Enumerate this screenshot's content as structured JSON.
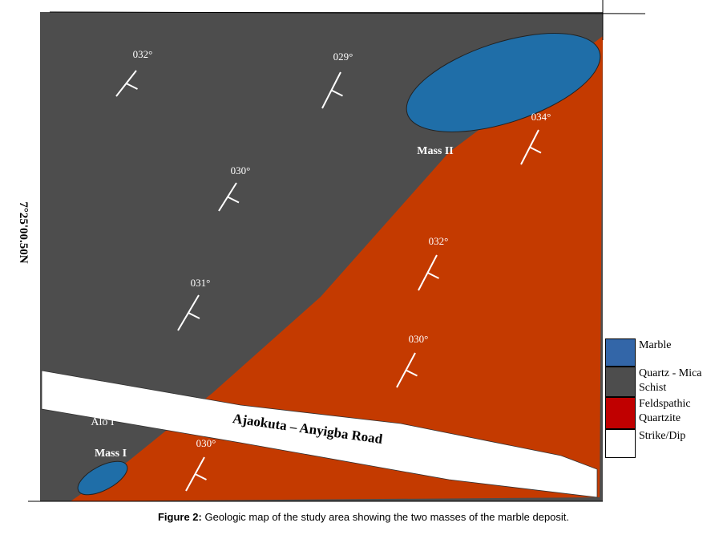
{
  "map": {
    "coordinate_label": "7°25'00.50N",
    "strike_dip": [
      {
        "label": "032°"
      },
      {
        "label": "029°"
      },
      {
        "label": "030°"
      },
      {
        "label": "031°"
      },
      {
        "label": "034°"
      },
      {
        "label": "032°"
      },
      {
        "label": "030°"
      },
      {
        "label": "030°"
      }
    ],
    "masses": [
      "Mass II",
      "Mass I"
    ],
    "locality": "Alo I",
    "road": "Ajaokuta – Anyigba Road"
  },
  "legend": [
    {
      "label": "Marble",
      "color": "#3366a8"
    },
    {
      "label": "Quartz - Mica Schist",
      "color": "#4d4d4d"
    },
    {
      "label": "Feldspathic Quartzite",
      "color": "#c00000"
    },
    {
      "label": "Strike/Dip",
      "color": "#ffffff"
    }
  ],
  "caption": {
    "label": "Figure 2:",
    "text": "Geologic map of the study area showing the two masses of the marble deposit."
  }
}
